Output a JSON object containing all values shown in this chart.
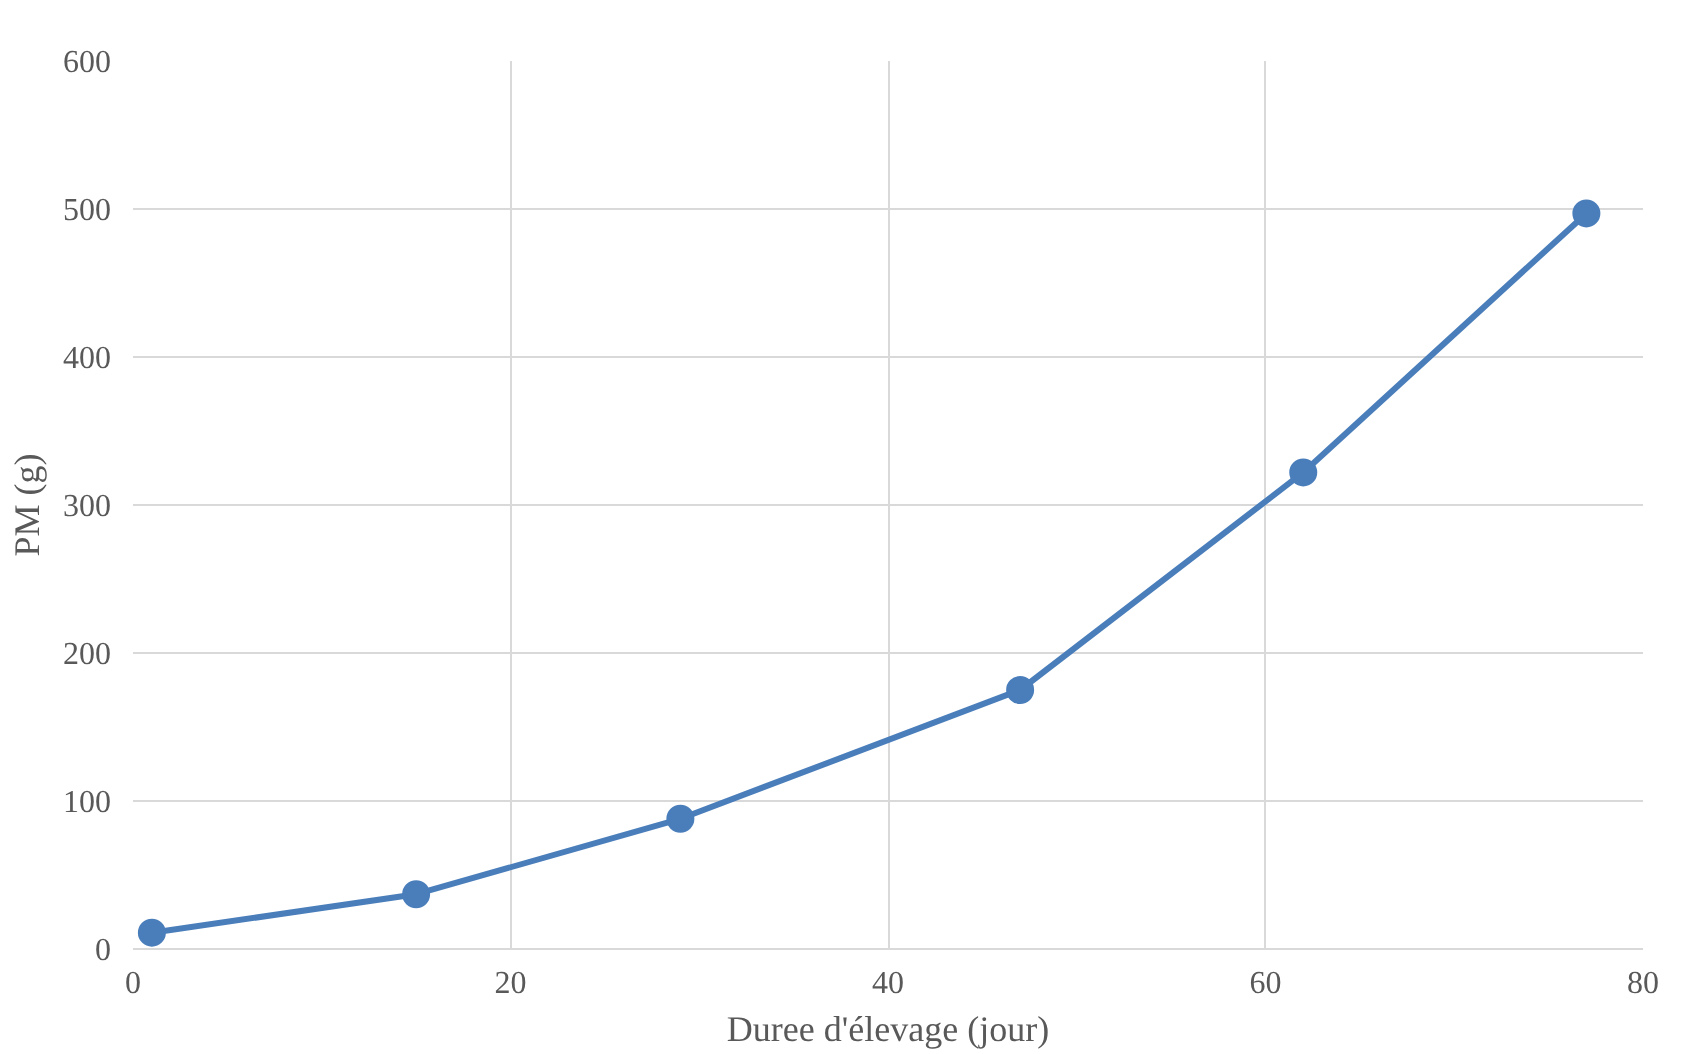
{
  "chart_data": {
    "type": "line",
    "xlabel": "Duree d'élevage (jour)",
    "ylabel": "PM (g)",
    "x": [
      1,
      15,
      29,
      47,
      62,
      77
    ],
    "series": [
      {
        "color": "#4a7ebb",
        "values": [
          11,
          37,
          88,
          175,
          322,
          497
        ]
      }
    ],
    "xlim": [
      0,
      80
    ],
    "xticks": [
      0,
      20,
      40,
      60,
      80
    ],
    "ylim": [
      0,
      600
    ],
    "yticks": [
      0,
      100,
      200,
      300,
      400,
      500,
      600
    ],
    "grid": true,
    "marker": "circle",
    "line_style": "solid"
  }
}
